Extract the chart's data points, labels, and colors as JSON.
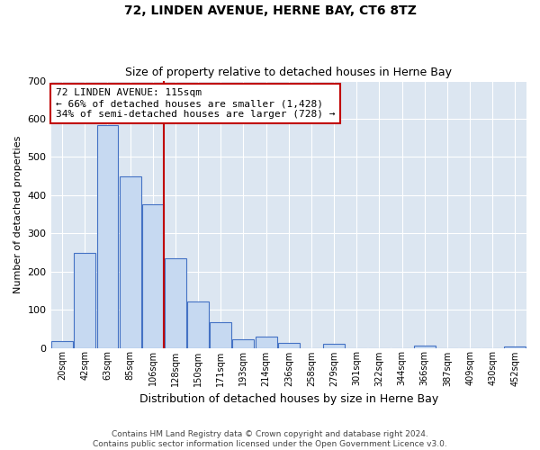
{
  "title": "72, LINDEN AVENUE, HERNE BAY, CT6 8TZ",
  "subtitle": "Size of property relative to detached houses in Herne Bay",
  "xlabel": "Distribution of detached houses by size in Herne Bay",
  "ylabel": "Number of detached properties",
  "bar_labels": [
    "20sqm",
    "42sqm",
    "63sqm",
    "85sqm",
    "106sqm",
    "128sqm",
    "150sqm",
    "171sqm",
    "193sqm",
    "214sqm",
    "236sqm",
    "258sqm",
    "279sqm",
    "301sqm",
    "322sqm",
    "344sqm",
    "366sqm",
    "387sqm",
    "409sqm",
    "430sqm",
    "452sqm"
  ],
  "bar_values": [
    18,
    248,
    583,
    450,
    375,
    235,
    122,
    67,
    22,
    30,
    12,
    0,
    10,
    0,
    0,
    0,
    5,
    0,
    0,
    0,
    3
  ],
  "bar_color": "#c6d9f1",
  "bar_edge_color": "#4472c4",
  "vline_color": "#c00000",
  "vline_pos": 4.5,
  "annotation_text": "72 LINDEN AVENUE: 115sqm\n← 66% of detached houses are smaller (1,428)\n34% of semi-detached houses are larger (728) →",
  "annotation_box_color": "#ffffff",
  "annotation_box_edge": "#c00000",
  "ylim": [
    0,
    700
  ],
  "yticks": [
    0,
    100,
    200,
    300,
    400,
    500,
    600,
    700
  ],
  "footer": "Contains HM Land Registry data © Crown copyright and database right 2024.\nContains public sector information licensed under the Open Government Licence v3.0.",
  "bg_color": "#dce6f1",
  "grid_color": "#ffffff",
  "title_fontsize": 10,
  "subtitle_fontsize": 9,
  "ylabel_fontsize": 8,
  "xlabel_fontsize": 9,
  "tick_fontsize": 7,
  "annotation_fontsize": 8,
  "footer_fontsize": 6.5
}
